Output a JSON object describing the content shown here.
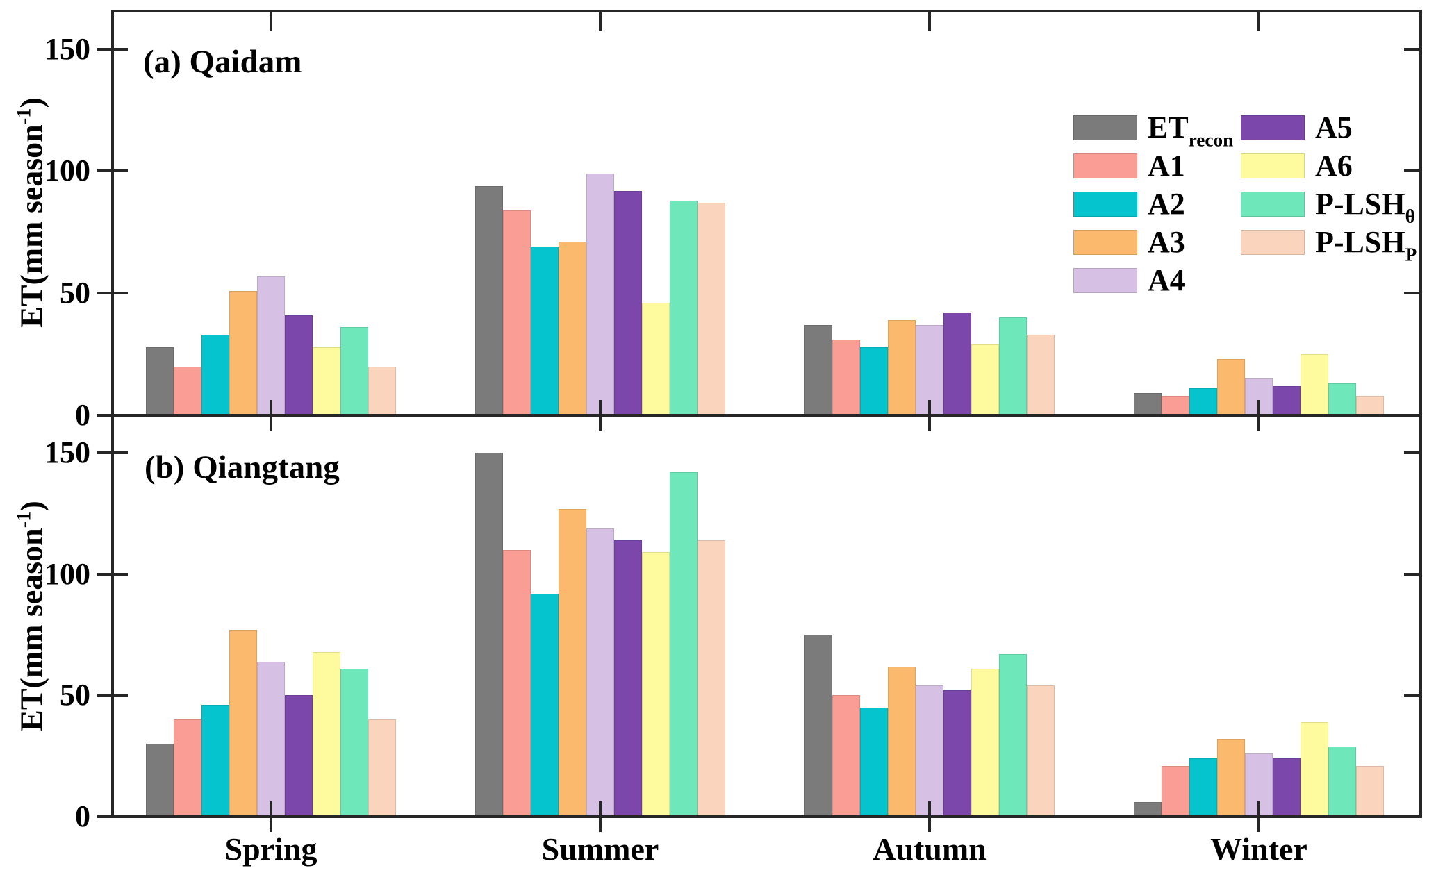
{
  "panels": [
    {
      "label": "(a) Qaidam"
    },
    {
      "label": "(b) Qiangtang"
    }
  ],
  "ylabel": {
    "prefix": "ET(mm season",
    "sup": "-1",
    "suffix": ")"
  },
  "yaxis": {
    "tickvalues": [
      0,
      50,
      100,
      150
    ],
    "ticklabels": [
      "0",
      "50",
      "100",
      "150"
    ],
    "ymax": 165
  },
  "seasons": [
    "Spring",
    "Summer",
    "Autumn",
    "Winter"
  ],
  "legend": {
    "left": [
      {
        "main": "ET",
        "sub": "recon",
        "color": "#7B7B7B"
      },
      {
        "main": "A1",
        "sub": "",
        "color": "#FA9E95"
      },
      {
        "main": "A2",
        "sub": "",
        "color": "#06C4CD"
      },
      {
        "main": "A3",
        "sub": "",
        "color": "#FBB96D"
      },
      {
        "main": "A4",
        "sub": "",
        "color": "#D6C1E4"
      }
    ],
    "right": [
      {
        "main": "A5",
        "sub": "",
        "color": "#7C47AA"
      },
      {
        "main": "A6",
        "sub": "",
        "color": "#FEFB9E"
      },
      {
        "main": "P-LSH",
        "sub": "θ",
        "color": "#6EE7BA"
      },
      {
        "main": "P-LSH",
        "sub": "P",
        "color": "#FBD4BD"
      }
    ]
  },
  "chart_data": [
    {
      "type": "bar",
      "title": "(a) Qaidam",
      "categories": [
        "Spring",
        "Summer",
        "Autumn",
        "Winter"
      ],
      "xlabel": "",
      "ylabel": "ET (mm season-1)",
      "ylim": [
        0,
        165
      ],
      "grid": false,
      "legend_position": "upper right",
      "series": [
        {
          "name": "ETrecon",
          "color": "#7B7B7B",
          "values": [
            28,
            94,
            37,
            9
          ]
        },
        {
          "name": "A1",
          "color": "#FA9E95",
          "values": [
            20,
            84,
            31,
            8
          ]
        },
        {
          "name": "A2",
          "color": "#06C4CD",
          "values": [
            33,
            69,
            28,
            11
          ]
        },
        {
          "name": "A3",
          "color": "#FBB96D",
          "values": [
            51,
            71,
            39,
            23
          ]
        },
        {
          "name": "A4",
          "color": "#D6C1E4",
          "values": [
            57,
            99,
            37,
            15
          ]
        },
        {
          "name": "A5",
          "color": "#7C47AA",
          "values": [
            41,
            92,
            42,
            12
          ]
        },
        {
          "name": "A6",
          "color": "#FEFB9E",
          "values": [
            28,
            46,
            29,
            25
          ]
        },
        {
          "name": "P-LSHθ",
          "color": "#6EE7BA",
          "values": [
            36,
            88,
            40,
            13
          ]
        },
        {
          "name": "P-LSHP",
          "color": "#FBD4BD",
          "values": [
            20,
            87,
            33,
            8
          ]
        }
      ]
    },
    {
      "type": "bar",
      "title": "(b) Qiangtang",
      "categories": [
        "Spring",
        "Summer",
        "Autumn",
        "Winter"
      ],
      "xlabel": "",
      "ylabel": "ET (mm season-1)",
      "ylim": [
        0,
        165
      ],
      "grid": false,
      "legend_position": "none",
      "series": [
        {
          "name": "ETrecon",
          "color": "#7B7B7B",
          "values": [
            30,
            150,
            75,
            6
          ]
        },
        {
          "name": "A1",
          "color": "#FA9E95",
          "values": [
            40,
            110,
            50,
            21
          ]
        },
        {
          "name": "A2",
          "color": "#06C4CD",
          "values": [
            46,
            92,
            45,
            24
          ]
        },
        {
          "name": "A3",
          "color": "#FBB96D",
          "values": [
            77,
            127,
            62,
            32
          ]
        },
        {
          "name": "A4",
          "color": "#D6C1E4",
          "values": [
            64,
            119,
            54,
            26
          ]
        },
        {
          "name": "A5",
          "color": "#7C47AA",
          "values": [
            50,
            114,
            52,
            24
          ]
        },
        {
          "name": "A6",
          "color": "#FEFB9E",
          "values": [
            68,
            109,
            61,
            39
          ]
        },
        {
          "name": "P-LSHθ",
          "color": "#6EE7BA",
          "values": [
            61,
            142,
            67,
            29
          ]
        },
        {
          "name": "P-LSHP",
          "color": "#FBD4BD",
          "values": [
            40,
            114,
            54,
            21
          ]
        }
      ]
    }
  ]
}
